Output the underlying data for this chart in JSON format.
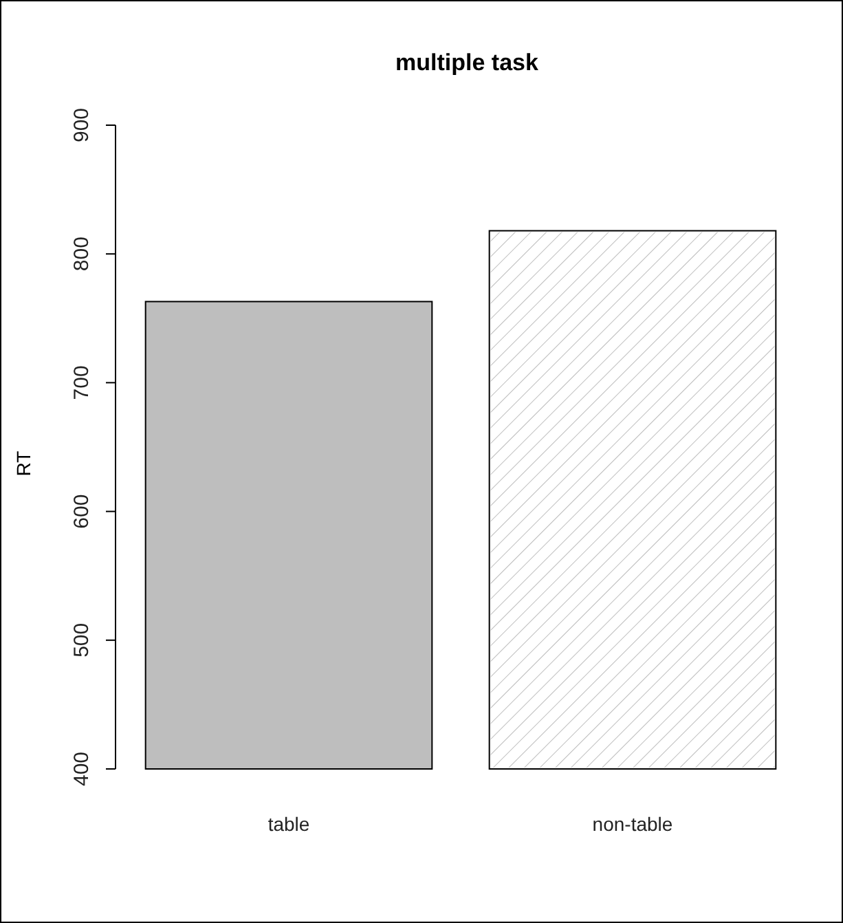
{
  "chart_data": {
    "type": "bar",
    "title": "multiple task",
    "ylabel": "RT",
    "categories": [
      "table",
      "non-table"
    ],
    "values": [
      763,
      818
    ],
    "colors": [
      "#bebebe",
      "#ffffff"
    ],
    "ylim": [
      400,
      900
    ],
    "yticks": [
      400,
      500,
      600,
      700,
      800,
      900
    ],
    "grid": false
  }
}
